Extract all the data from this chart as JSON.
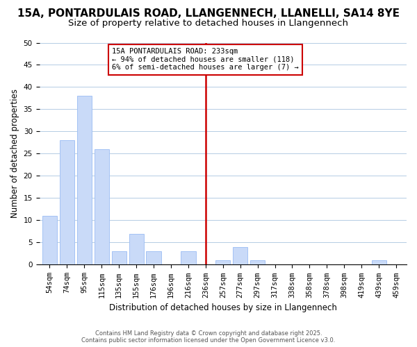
{
  "title": "15A, PONTARDULAIS ROAD, LLANGENNECH, LLANELLI, SA14 8YE",
  "subtitle": "Size of property relative to detached houses in Llangennech",
  "xlabel": "Distribution of detached houses by size in Llangennech",
  "ylabel": "Number of detached properties",
  "bar_labels": [
    "54sqm",
    "74sqm",
    "95sqm",
    "115sqm",
    "135sqm",
    "155sqm",
    "176sqm",
    "196sqm",
    "216sqm",
    "236sqm",
    "257sqm",
    "277sqm",
    "297sqm",
    "317sqm",
    "338sqm",
    "358sqm",
    "378sqm",
    "398sqm",
    "419sqm",
    "439sqm",
    "459sqm"
  ],
  "bar_values": [
    11,
    28,
    38,
    26,
    3,
    7,
    3,
    0,
    3,
    0,
    1,
    4,
    1,
    0,
    0,
    0,
    0,
    0,
    0,
    1,
    0
  ],
  "bar_color": "#c9daf8",
  "bar_edgecolor": "#a4c2f4",
  "grid_color": "#b4cce4",
  "ylim": [
    0,
    50
  ],
  "yticks": [
    0,
    5,
    10,
    15,
    20,
    25,
    30,
    35,
    40,
    45,
    50
  ],
  "vline_x_index": 9,
  "vline_color": "#cc0000",
  "annotation_title": "15A PONTARDULAIS ROAD: 233sqm",
  "annotation_line1": "← 94% of detached houses are smaller (118)",
  "annotation_line2": "6% of semi-detached houses are larger (7) →",
  "footer_line1": "Contains HM Land Registry data © Crown copyright and database right 2025.",
  "footer_line2": "Contains public sector information licensed under the Open Government Licence v3.0.",
  "title_fontsize": 11,
  "subtitle_fontsize": 9.5,
  "axis_label_fontsize": 8.5,
  "tick_fontsize": 7.5,
  "annotation_fontsize": 7.5,
  "footer_fontsize": 6
}
